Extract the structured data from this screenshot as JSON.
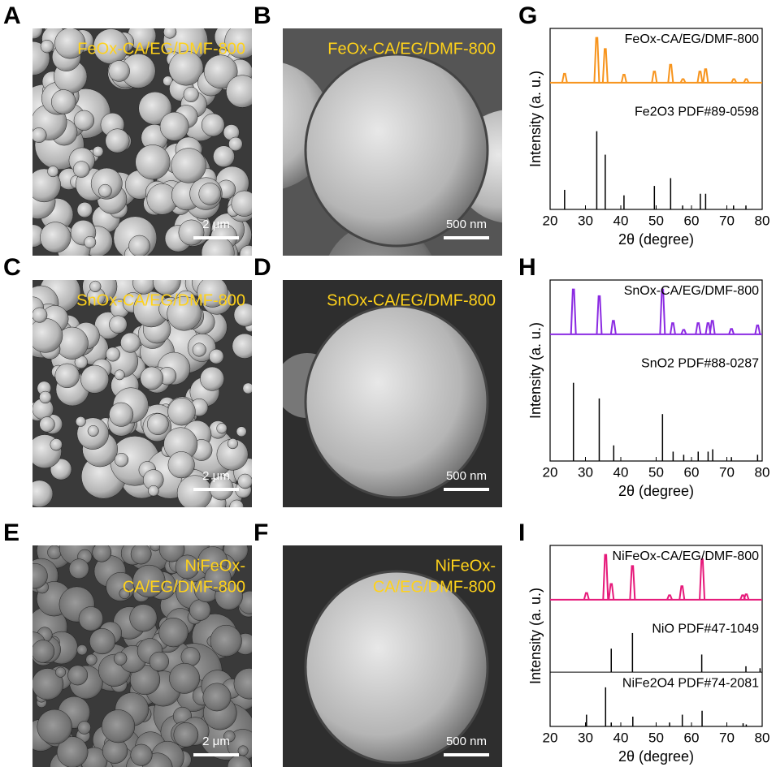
{
  "panels": [
    {
      "label": "A",
      "caption": [
        "FeOx-CA/EG/DMF-800"
      ],
      "scale_bar": "2 μm"
    },
    {
      "label": "B",
      "caption": [
        "FeOx-CA/EG/DMF-800"
      ],
      "scale_bar": "500 nm"
    },
    {
      "label": "C",
      "caption": [
        "SnOx-CA/EG/DMF-800"
      ],
      "scale_bar": "2 μm"
    },
    {
      "label": "D",
      "caption": [
        "SnOx-CA/EG/DMF-800"
      ],
      "scale_bar": "500 nm"
    },
    {
      "label": "E",
      "caption": [
        "NiFeOx-",
        "CA/EG/DMF-800"
      ],
      "scale_bar": "2 μm"
    },
    {
      "label": "F",
      "caption": [
        "NiFeOx-",
        "CA/EG/DMF-800"
      ],
      "scale_bar": "500 nm"
    }
  ],
  "chart_data": [
    {
      "type": "line",
      "label": "G",
      "ylabel": "Intensity (a. u.)",
      "xlabel": "2θ (degree)",
      "xlim": [
        20,
        80
      ],
      "xticks": [
        20,
        30,
        40,
        50,
        60,
        70,
        80
      ],
      "ylim": [
        0,
        100
      ],
      "series": [
        {
          "name": "FeOx-CA/EG/DMF-800",
          "color": "#f7941d",
          "style": "line",
          "x": [
            24.1,
            33.2,
            35.6,
            40.9,
            49.5,
            54.1,
            57.6,
            62.4,
            64.0,
            72.0,
            75.5
          ],
          "values": [
            20,
            100,
            75,
            18,
            25,
            40,
            8,
            25,
            30,
            8,
            8
          ]
        },
        {
          "name": "Fe2O3 PDF#89-0598",
          "color": "#000000",
          "style": "sticks",
          "x": [
            24.1,
            33.2,
            35.6,
            40.9,
            49.5,
            54.1,
            57.5,
            62.5,
            64.0,
            71.9,
            75.4
          ],
          "values": [
            25,
            100,
            70,
            18,
            30,
            40,
            5,
            20,
            20,
            5,
            5
          ]
        }
      ]
    },
    {
      "type": "line",
      "label": "H",
      "ylabel": "Intensity (a. u.)",
      "xlabel": "2θ (degree)",
      "xlim": [
        20,
        80
      ],
      "xticks": [
        20,
        30,
        40,
        50,
        60,
        70,
        80
      ],
      "ylim": [
        0,
        100
      ],
      "series": [
        {
          "name": "SnOx-CA/EG/DMF-800",
          "color": "#8b2be2",
          "style": "line",
          "x": [
            26.6,
            33.9,
            37.9,
            51.8,
            54.7,
            57.8,
            61.9,
            64.7,
            65.9,
            71.3,
            78.7
          ],
          "values": [
            100,
            85,
            30,
            100,
            25,
            10,
            25,
            25,
            30,
            12,
            20
          ]
        },
        {
          "name": "SnO2 PDF#88-0287",
          "color": "#000000",
          "style": "sticks",
          "x": [
            26.6,
            33.9,
            38.0,
            51.8,
            54.8,
            57.8,
            61.9,
            64.7,
            66.0,
            71.3,
            78.7
          ],
          "values": [
            100,
            80,
            20,
            60,
            12,
            8,
            12,
            12,
            15,
            5,
            8
          ]
        }
      ]
    },
    {
      "type": "line",
      "label": "I",
      "ylabel": "Intensity (a. u.)",
      "xlabel": "2θ (degree)",
      "xlim": [
        20,
        80
      ],
      "xticks": [
        20,
        30,
        40,
        50,
        60,
        70,
        80
      ],
      "ylim": [
        0,
        100
      ],
      "series": [
        {
          "name": "NiFeOx-CA/EG/DMF-800",
          "color": "#e6197a",
          "style": "line",
          "x": [
            30.3,
            35.7,
            37.3,
            43.3,
            53.8,
            57.3,
            63.0,
            74.5,
            75.5
          ],
          "values": [
            15,
            100,
            35,
            75,
            10,
            30,
            90,
            10,
            12
          ]
        },
        {
          "name": "NiO PDF#47-1049",
          "color": "#000000",
          "style": "sticks",
          "x": [
            37.3,
            43.3,
            62.9,
            75.4,
            79.4
          ],
          "values": [
            60,
            100,
            45,
            15,
            10
          ]
        },
        {
          "name": "NiFe2O4 PDF#74-2081",
          "color": "#000000",
          "style": "sticks",
          "x": [
            30.3,
            35.7,
            37.3,
            43.4,
            53.8,
            57.4,
            63.0,
            74.6,
            75.5
          ],
          "values": [
            30,
            100,
            10,
            25,
            10,
            30,
            40,
            8,
            5
          ]
        }
      ]
    }
  ]
}
